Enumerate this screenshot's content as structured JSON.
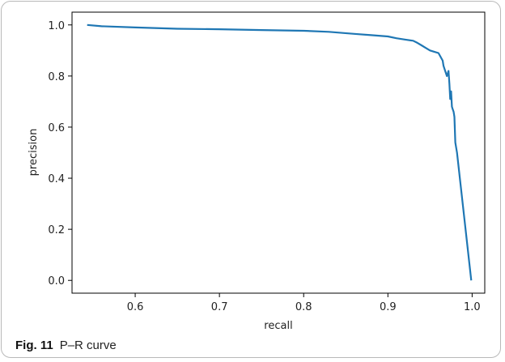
{
  "figure": {
    "label": "Fig. 11",
    "caption": "P–R curve"
  },
  "chart_data": {
    "type": "line",
    "xlabel": "recall",
    "ylabel": "precision",
    "xlim": [
      0.525,
      1.015
    ],
    "ylim": [
      -0.05,
      1.05
    ],
    "xticks": [
      0.6,
      0.7,
      0.8,
      0.9,
      1.0
    ],
    "xtick_labels": [
      "0.6",
      "0.7",
      "0.8",
      "0.9",
      "1.0"
    ],
    "yticks": [
      0.0,
      0.2,
      0.4,
      0.6,
      0.8,
      1.0
    ],
    "ytick_labels": [
      "0.0",
      "0.2",
      "0.4",
      "0.6",
      "0.8",
      "1.0"
    ],
    "grid": false,
    "line_color": "#1f77b4",
    "series": [
      {
        "x": [
          0.543,
          0.56,
          0.6,
          0.65,
          0.7,
          0.75,
          0.8,
          0.83,
          0.86,
          0.88,
          0.9,
          0.91,
          0.92,
          0.93,
          0.935,
          0.94,
          0.945,
          0.95,
          0.955,
          0.96,
          0.965,
          0.966,
          0.968,
          0.97,
          0.972,
          0.973,
          0.974,
          0.975,
          0.976,
          0.977,
          0.978,
          0.979,
          0.98,
          0.982,
          0.999
        ],
        "y": [
          1.0,
          0.995,
          0.99,
          0.985,
          0.983,
          0.98,
          0.977,
          0.973,
          0.965,
          0.96,
          0.955,
          0.948,
          0.943,
          0.938,
          0.93,
          0.92,
          0.91,
          0.9,
          0.895,
          0.89,
          0.86,
          0.84,
          0.82,
          0.8,
          0.82,
          0.77,
          0.71,
          0.74,
          0.68,
          0.67,
          0.66,
          0.64,
          0.54,
          0.5,
          0.0
        ]
      }
    ]
  }
}
